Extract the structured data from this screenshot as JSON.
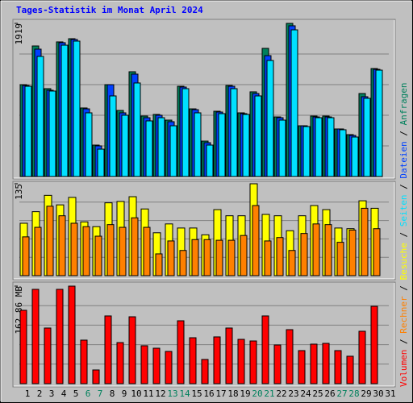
{
  "title": "Tages-Statistik im Monat April 2024",
  "legend_separator": "/",
  "chart_data": [
    {
      "type": "bar",
      "ylim": [
        0,
        1919
      ],
      "yticks": [
        1919
      ],
      "categories": [
        "1",
        "2",
        "3",
        "4",
        "5",
        "6",
        "7",
        "8",
        "9",
        "10",
        "11",
        "12",
        "13",
        "14",
        "15",
        "16",
        "17",
        "18",
        "19",
        "20",
        "21",
        "22",
        "23",
        "24",
        "25",
        "26",
        "27",
        "28",
        "29",
        "30",
        "31"
      ],
      "category_colors": [
        "#000000",
        "#000000",
        "#000000",
        "#000000",
        "#000000",
        "#00805c",
        "#00805c",
        "#000000",
        "#000000",
        "#000000",
        "#000000",
        "#000000",
        "#00805c",
        "#00805c",
        "#000000",
        "#000000",
        "#000000",
        "#000000",
        "#000000",
        "#00805c",
        "#00805c",
        "#000000",
        "#000000",
        "#000000",
        "#000000",
        "#000000",
        "#00805c",
        "#00805c",
        "#000000",
        "#000000",
        "#000000"
      ],
      "series": [
        {
          "name": "Anfragen",
          "color": "#00805c",
          "values": [
            1151,
            1636,
            1101,
            1687,
            1727,
            859,
            394,
            1151,
            828,
            1313,
            758,
            778,
            707,
            1131,
            848,
            444,
            818,
            1141,
            798,
            1061,
            1606,
            747,
            1919,
            636,
            758,
            758,
            596,
            525,
            1040,
            1353,
            null
          ]
        },
        {
          "name": "Dateien",
          "color": "#0040ff",
          "values": [
            1141,
            1596,
            1081,
            1677,
            1717,
            848,
            384,
            1151,
            798,
            1283,
            737,
            768,
            687,
            1121,
            838,
            424,
            808,
            1131,
            788,
            1040,
            1515,
            737,
            1889,
            636,
            747,
            747,
            596,
            515,
            1000,
            1343,
            null
          ]
        },
        {
          "name": "Seiten",
          "color": "#00e0ff",
          "values": [
            1131,
            1505,
            1071,
            1646,
            1697,
            798,
            343,
            1010,
            768,
            1172,
            697,
            737,
            636,
            1101,
            798,
            394,
            788,
            1101,
            778,
            1010,
            1454,
            707,
            1838,
            626,
            737,
            737,
            586,
            495,
            980,
            1333,
            null
          ]
        }
      ]
    },
    {
      "type": "bar",
      "ylim": [
        0,
        135
      ],
      "yticks": [
        135
      ],
      "series": [
        {
          "name": "Besuche",
          "color": "#ffff00",
          "values": [
            77,
            94,
            118,
            104,
            115,
            79,
            72,
            107,
            109,
            116,
            98,
            63,
            76,
            70,
            70,
            60,
            97,
            88,
            88,
            135,
            90,
            88,
            66,
            88,
            103,
            97,
            70,
            69,
            110,
            99,
            null
          ]
        },
        {
          "name": "Rechner",
          "color": "#ff8000",
          "values": [
            57,
            71,
            102,
            88,
            77,
            72,
            58,
            75,
            71,
            85,
            71,
            32,
            51,
            37,
            53,
            53,
            52,
            52,
            59,
            103,
            51,
            56,
            37,
            62,
            76,
            75,
            49,
            67,
            99,
            69,
            null
          ]
        }
      ]
    },
    {
      "type": "bar",
      "ylim": [
        0,
        162.86
      ],
      "yticks": [
        {
          "value": 162.86,
          "label": "162.86 MB"
        }
      ],
      "series": [
        {
          "name": "Volumen",
          "color": "#ff0000",
          "values": [
            122.5,
            157.5,
            92.9,
            157.5,
            162.86,
            72.7,
            22.9,
            113.1,
            68.6,
            111.7,
            63.3,
            59.2,
            53.8,
            105,
            76.7,
            40.4,
            78.1,
            92.9,
            74,
            71.3,
            113.1,
            64.6,
            90.2,
            55.2,
            66,
            67.3,
            55.2,
            45.8,
            87.5,
            129.2,
            null
          ]
        }
      ]
    }
  ]
}
